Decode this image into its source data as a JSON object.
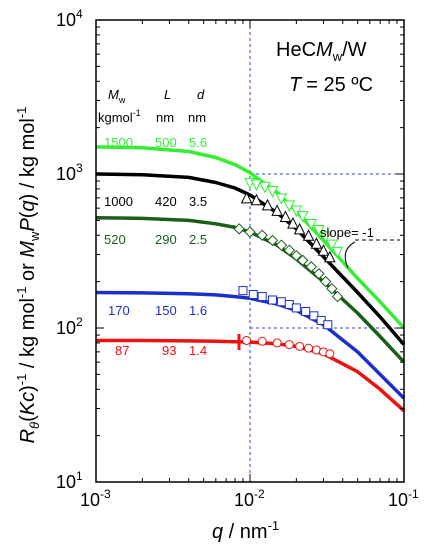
{
  "chart_data": {
    "type": "line",
    "xscale": "log",
    "yscale": "log",
    "xlim": [
      0.001,
      0.1
    ],
    "ylim": [
      10,
      10000
    ],
    "grid": false,
    "xlabel": "q / nm-1",
    "ylabel": "Rθ(Kc)-1 / kg mol-1 or MwP(q) / kg mol-1",
    "x_ticks": [
      {
        "base": "10",
        "exp": "-3",
        "value": 0.001
      },
      {
        "base": "10",
        "exp": "-2",
        "value": 0.01
      },
      {
        "base": "10",
        "exp": "-1",
        "value": 0.1
      }
    ],
    "y_ticks": [
      {
        "base": "10",
        "exp": "1",
        "value": 10
      },
      {
        "base": "10",
        "exp": "2",
        "value": 100
      },
      {
        "base": "10",
        "exp": "3",
        "value": 1000
      },
      {
        "base": "10",
        "exp": "4",
        "value": 10000
      }
    ],
    "annotations": {
      "system": "HeCMw/W",
      "system_prefix": "HeC",
      "system_M": "M",
      "system_sub": "w",
      "system_suffix": "/W",
      "temperature_var": "T",
      "temperature": "= 25 ºC",
      "slope_label": "slope= -1"
    },
    "table_headers": {
      "Mw_sym": "M",
      "Mw_sub": "w",
      "L_sym": "L",
      "d_sym": "d",
      "Mw_unit": "kgmol",
      "Mw_unit_exp": "-1",
      "L_unit": "nm",
      "d_unit": "nm"
    },
    "series": [
      {
        "color": "#33ee33",
        "Mw": "1500",
        "L": "500",
        "d": "5.6",
        "curve": [
          [
            0.001,
            1500
          ],
          [
            0.002,
            1480
          ],
          [
            0.004,
            1400
          ],
          [
            0.006,
            1280
          ],
          [
            0.008,
            1150
          ],
          [
            0.01,
            1020
          ],
          [
            0.015,
            760
          ],
          [
            0.02,
            570
          ],
          [
            0.03,
            370
          ],
          [
            0.05,
            210
          ],
          [
            0.07,
            148
          ],
          [
            0.1,
            100
          ]
        ],
        "marker": "triangle-down",
        "points": [
          [
            0.01,
            870
          ],
          [
            0.011,
            850
          ],
          [
            0.0125,
            820
          ],
          [
            0.014,
            770
          ],
          [
            0.016,
            690
          ],
          [
            0.018,
            620
          ],
          [
            0.02,
            575
          ],
          [
            0.022,
            530
          ],
          [
            0.025,
            470
          ],
          [
            0.028,
            430
          ],
          [
            0.031,
            390
          ],
          [
            0.034,
            345
          ],
          [
            0.037,
            310
          ]
        ]
      },
      {
        "color": "#000000",
        "Mw": "1000",
        "L": "420",
        "d": "3.5",
        "curve": [
          [
            0.001,
            1000
          ],
          [
            0.002,
            990
          ],
          [
            0.004,
            950
          ],
          [
            0.006,
            880
          ],
          [
            0.008,
            810
          ],
          [
            0.01,
            730
          ],
          [
            0.015,
            560
          ],
          [
            0.02,
            440
          ],
          [
            0.03,
            290
          ],
          [
            0.05,
            170
          ],
          [
            0.07,
            118
          ],
          [
            0.1,
            78
          ]
        ],
        "marker": "triangle-up",
        "points": [
          [
            0.0095,
            700
          ],
          [
            0.011,
            680
          ],
          [
            0.013,
            630
          ],
          [
            0.015,
            580
          ],
          [
            0.017,
            530
          ],
          [
            0.019,
            480
          ],
          [
            0.021,
            440
          ],
          [
            0.024,
            400
          ],
          [
            0.027,
            355
          ],
          [
            0.03,
            320
          ],
          [
            0.033,
            290
          ]
        ]
      },
      {
        "color": "#1a5e1a",
        "Mw": "520",
        "L": "290",
        "d": "2.5",
        "curve": [
          [
            0.001,
            520
          ],
          [
            0.002,
            515
          ],
          [
            0.004,
            500
          ],
          [
            0.006,
            475
          ],
          [
            0.008,
            450
          ],
          [
            0.01,
            420
          ],
          [
            0.015,
            345
          ],
          [
            0.02,
            280
          ],
          [
            0.03,
            200
          ],
          [
            0.05,
            125
          ],
          [
            0.07,
            88
          ],
          [
            0.1,
            60
          ]
        ],
        "marker": "diamond",
        "points": [
          [
            0.0085,
            440
          ],
          [
            0.01,
            420
          ],
          [
            0.012,
            400
          ],
          [
            0.014,
            370
          ],
          [
            0.016,
            345
          ],
          [
            0.018,
            320
          ],
          [
            0.02,
            295
          ],
          [
            0.022,
            275
          ],
          [
            0.025,
            250
          ],
          [
            0.028,
            225
          ],
          [
            0.031,
            200
          ],
          [
            0.034,
            180
          ],
          [
            0.037,
            160
          ]
        ]
      },
      {
        "color": "#1a2fcc",
        "Mw": "170",
        "L": "150",
        "d": "1.6",
        "curve": [
          [
            0.001,
            170
          ],
          [
            0.002,
            169
          ],
          [
            0.004,
            167
          ],
          [
            0.006,
            164
          ],
          [
            0.008,
            160
          ],
          [
            0.01,
            156
          ],
          [
            0.015,
            143
          ],
          [
            0.02,
            130
          ],
          [
            0.03,
            105
          ],
          [
            0.05,
            70
          ],
          [
            0.07,
            50
          ],
          [
            0.1,
            35
          ]
        ],
        "marker": "square",
        "points": [
          [
            0.009,
            175
          ],
          [
            0.0105,
            165
          ],
          [
            0.012,
            160
          ],
          [
            0.014,
            152
          ],
          [
            0.016,
            148
          ],
          [
            0.018,
            142
          ],
          [
            0.02,
            135
          ],
          [
            0.023,
            128
          ],
          [
            0.026,
            120
          ],
          [
            0.029,
            112
          ],
          [
            0.032,
            105
          ]
        ]
      },
      {
        "color": "#ee1111",
        "Mw": "87",
        "L": "93",
        "d": "1.4",
        "curve": [
          [
            0.001,
            83
          ],
          [
            0.002,
            83
          ],
          [
            0.004,
            82.5
          ],
          [
            0.006,
            82
          ],
          [
            0.008,
            81.5
          ],
          [
            0.01,
            81
          ],
          [
            0.015,
            79
          ],
          [
            0.02,
            76
          ],
          [
            0.03,
            68
          ],
          [
            0.05,
            52
          ],
          [
            0.07,
            40
          ],
          [
            0.1,
            29
          ]
        ],
        "marker": "circle",
        "points": [
          [
            0.0095,
            83
          ],
          [
            0.012,
            82
          ],
          [
            0.015,
            80
          ],
          [
            0.018,
            78
          ],
          [
            0.021,
            76
          ],
          [
            0.024,
            74
          ],
          [
            0.027,
            72
          ],
          [
            0.03,
            70
          ],
          [
            0.033,
            68
          ]
        ]
      }
    ],
    "reference_lines": {
      "vertical_x": 0.01,
      "horizontal_y": [
        1000,
        100
      ]
    }
  }
}
